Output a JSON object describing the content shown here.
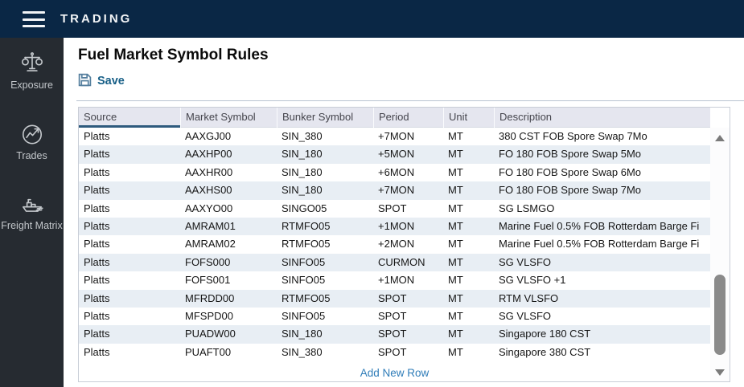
{
  "topbar": {
    "title": "TRADING"
  },
  "sidebar": {
    "items": [
      {
        "label": "Exposure",
        "icon": "scales-icon"
      },
      {
        "label": "Trades",
        "icon": "trend-chart-icon"
      },
      {
        "label": "Freight Matrix",
        "icon": "ship-icon"
      }
    ]
  },
  "main": {
    "page_title": "Fuel Market Symbol Rules",
    "toolbar": {
      "save_label": "Save"
    },
    "table": {
      "columns": [
        "Source",
        "Market Symbol",
        "Bunker Symbol",
        "Period",
        "Unit",
        "Description"
      ],
      "rows": [
        [
          "Platts",
          "AAXGJ00",
          "SIN_380",
          "+7MON",
          "MT",
          "380 CST FOB Spore Swap 7Mo"
        ],
        [
          "Platts",
          "AAXHP00",
          "SIN_180",
          "+5MON",
          "MT",
          "FO 180 FOB Spore Swap 5Mo"
        ],
        [
          "Platts",
          "AAXHR00",
          "SIN_180",
          "+6MON",
          "MT",
          "FO 180 FOB Spore Swap 6Mo"
        ],
        [
          "Platts",
          "AAXHS00",
          "SIN_180",
          "+7MON",
          "MT",
          "FO 180 FOB Spore Swap 7Mo"
        ],
        [
          "Platts",
          "AAXYO00",
          "SINGO05",
          "SPOT",
          "MT",
          "SG LSMGO"
        ],
        [
          "Platts",
          "AMRAM01",
          "RTMFO05",
          "+1MON",
          "MT",
          "Marine Fuel 0.5% FOB Rotterdam Barge Fi"
        ],
        [
          "Platts",
          "AMRAM02",
          "RTMFO05",
          "+2MON",
          "MT",
          "Marine Fuel 0.5% FOB Rotterdam Barge Fi"
        ],
        [
          "Platts",
          "FOFS000",
          "SINFO05",
          "CURMON",
          "MT",
          "SG VLSFO"
        ],
        [
          "Platts",
          "FOFS001",
          "SINFO05",
          "+1MON",
          "MT",
          "SG VLSFO +1"
        ],
        [
          "Platts",
          "MFRDD00",
          "RTMFO05",
          "SPOT",
          "MT",
          "RTM VLSFO"
        ],
        [
          "Platts",
          "MFSPD00",
          "SINFO05",
          "SPOT",
          "MT",
          "SG VLSFO"
        ],
        [
          "Platts",
          "PUADW00",
          "SIN_180",
          "SPOT",
          "MT",
          "Singapore 180 CST"
        ],
        [
          "Platts",
          "PUAFT00",
          "SIN_380",
          "SPOT",
          "MT",
          "Singapore 380 CST"
        ]
      ],
      "add_row_label": "Add New Row"
    }
  },
  "colors": {
    "topbar_bg": "#0a2745",
    "sidebar_bg": "#262b31",
    "header_bg": "#e5e6ef",
    "row_stripe": "#e8eef4",
    "sorted_column_underline": "#2e5a7d",
    "save_text": "#175f87",
    "add_row_link": "#2e7cb8"
  }
}
